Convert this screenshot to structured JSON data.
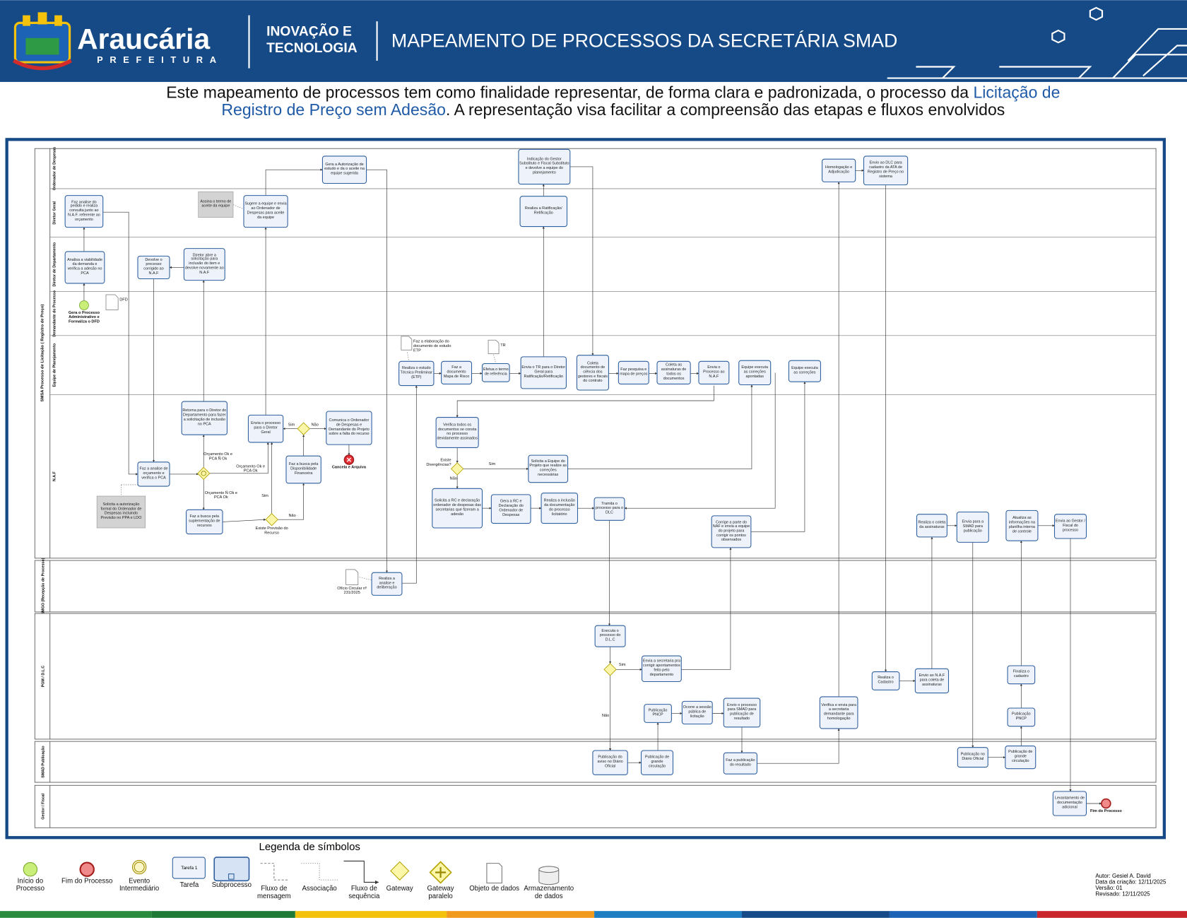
{
  "header": {
    "brand": "Araucária",
    "brand_sub": "PREFEITURA",
    "unit": "INOVAÇÃO E TECNOLOGIA",
    "title": "MAPEAMENTO DE PROCESSOS DA SECRETÁRIA SMAD"
  },
  "intro": {
    "text_before": "Este mapeamento de processos tem como finalidade representar, de forma clara e padronizada, o processo da",
    "highlight": "Licitação de Registro de Preço sem Adesão",
    "text_after": ". A representação visa facilitar a compreensão das etapas e fluxos envolvidos"
  },
  "pool": {
    "label": "SMSA Processo de Licitação ( Registro de Preço)",
    "lanes": [
      "Ordenador de Despesas",
      "Diretor Geral",
      "Diretor de Departamento",
      "Demandante do Processo",
      "Equipe de Planejamento",
      "N.A.F"
    ]
  },
  "other_pools": [
    "SMGO (Recepção de Processo)",
    "PGM / D.L.C",
    "SMAD Publicação",
    "Gestor / Fiscal"
  ],
  "nodes": [
    {
      "label": "Gera a Autorização de estudo e da o aceite na equipe sugerida"
    },
    {
      "label": "Indicação do Gestor Substituto e Fiscal Substituto e devolve a equipe do planejamento"
    },
    {
      "label": "Homologação e Adjudicação"
    },
    {
      "label": "Envio ao DLC para cadastro da ATA de Registro de Preço no sistema"
    },
    {
      "label": "Faz analise do pedido e realiza consulta junto ao N.A.F. referente ao orçamento"
    },
    {
      "label": "Assina o termo de aceite da equipe"
    },
    {
      "label": "Sugere a equipe e envia ao Ordenador de Despesas para aceite da equipe"
    },
    {
      "label": "Realiza a Ratificação/ Retificação"
    },
    {
      "label": "Analisa a viabilidade da demanda e verifica a adesão no PCA"
    },
    {
      "label": "Devolve o processo corrigido ao N.A.F"
    },
    {
      "label": "Diretor abre a solicitação para inclusão do item e devolve novamente ao N.A.F"
    },
    {
      "label": "Gera o Processo Administrativo e Formaliza o DFD"
    },
    {
      "label": "DFD"
    },
    {
      "label": "Faz a elaboração do documento de estudo ETP"
    },
    {
      "label": "Realiza o estudo Técnico Preliminar (ETP)"
    },
    {
      "label": "Faz a documento Mapa de Risco"
    },
    {
      "label": "TR"
    },
    {
      "label": "Efetua o termo de referência"
    },
    {
      "label": "Envia o TR para o Diretor Geral para Ratificação/Retificação"
    },
    {
      "label": "Coleta documento de ciência dos gestores e fiscais do contrato"
    },
    {
      "label": "Faz pesquisa e mapa de preços"
    },
    {
      "label": "Coleta as assinaturas de todos os documentos"
    },
    {
      "label": "Envia o Processo ao N.A.F"
    },
    {
      "label": "Equipe executa as correções apontadas"
    },
    {
      "label": "Equipe executa as correções"
    },
    {
      "label": "Retorna para o Diretor do Departamento para fazer a solicitação de inclusão no PCA"
    },
    {
      "label": "Envia o processo para o Diretor Geral"
    },
    {
      "label": "Comunica o Ordenador de Despesas e Demandante do Projeto sobre a falta do recurso"
    },
    {
      "label": "Cancela e Arquiva"
    },
    {
      "label": "Verifica todos os documentos se consta no processo devidamente assinados"
    },
    {
      "label": "Existe Divergências?"
    },
    {
      "label": "Solicita a Equipe do Projeto que realize as correções necessárias"
    },
    {
      "label": "Faz a analise de orçamento e verifica o PCA"
    },
    {
      "label": "Faz a busca pela Disponibilidade Financeira"
    },
    {
      "label": "Solicita a autorização formal do Ordenador de Despesas incluindo Previsão no PPA e LDO"
    },
    {
      "label": "Faz a busca pela suplementação de recursos"
    },
    {
      "label": "Existe Previsão do Recurso"
    },
    {
      "label": "Solicita a RC e declaração ordenador de despesas das secretarias que fizeram a adesão"
    },
    {
      "label": "Gera a RC e Declaração do Ordenador de Despesas"
    },
    {
      "label": "Realiza a inclusão da documentação do processo licitatório"
    },
    {
      "label": "Tramita o processo para o DLC"
    },
    {
      "label": "Corrige a parte do NAF e envia a equipe do projeto para corrigir os pontos observados"
    },
    {
      "label": "Realiza o coleta da assinaturas"
    },
    {
      "label": "Envia para a SMAD para publicação"
    },
    {
      "label": "Atualiza as informações na planilha interna de controle"
    },
    {
      "label": "Envia ao Gestor / Fiscal do processo"
    },
    {
      "label": "Ofício Circular nº 231/2025"
    },
    {
      "label": "Realiza a analise e deliberação"
    },
    {
      "label": "Executa o processo do D.L.C"
    },
    {
      "label": "Envia a secretaria pra corrigir apontamentos feito pelo departamento"
    },
    {
      "label": "Publicação PNCP"
    },
    {
      "label": "Ocorre a sessão pública de licitação"
    },
    {
      "label": "Envio o processo para SMAD para publicação de resultado"
    },
    {
      "label": "Verifica e envia para a secretaria demandante para homologação"
    },
    {
      "label": "Realiza o Cadastro"
    },
    {
      "label": "Envio ao N.A.F para coleta de assinaturas"
    },
    {
      "label": "Finaliza o cadastro"
    },
    {
      "label": "Publicação PNCP"
    },
    {
      "label": "Publicação do aviso no Diário Oficial"
    },
    {
      "label": "Publicação de grande circulação"
    },
    {
      "label": "Faz a publicação do resultado"
    },
    {
      "label": "Publicação no Diário Oficial"
    },
    {
      "label": "Publicação de grande circulação"
    },
    {
      "label": "Levantamento de documentação adicional"
    },
    {
      "label": "Fim do Processo"
    }
  ],
  "edge_labels": [
    "Sim",
    "Não",
    "Orçamento Ok e PCA Ñ Ok",
    "Orçamento Ok e PCA Ok",
    "Orçamento Ñ Ok e PCA Ok",
    "Sim",
    "Não",
    "Sim",
    "Não",
    "Sim",
    "Não"
  ],
  "legend": {
    "title": "Legenda de símbolos",
    "task_sample": "Tarefa 1",
    "items": [
      "Início do Processo",
      "Fim do Processo",
      "Evento Intermediário",
      "Tarefa",
      "Subprocesso",
      "Fluxo de mensagem",
      "Associação",
      "Fluxo de sequência",
      "Gateway",
      "Gateway paralelo",
      "Objeto de dados",
      "Armazenamento de dados"
    ]
  },
  "footer": {
    "author": "Autor: Gesiel A. David",
    "created": "Data da criação: 12/11/2025",
    "version": "Versão: 01",
    "revised": "Revisado: 12/11/2025"
  }
}
